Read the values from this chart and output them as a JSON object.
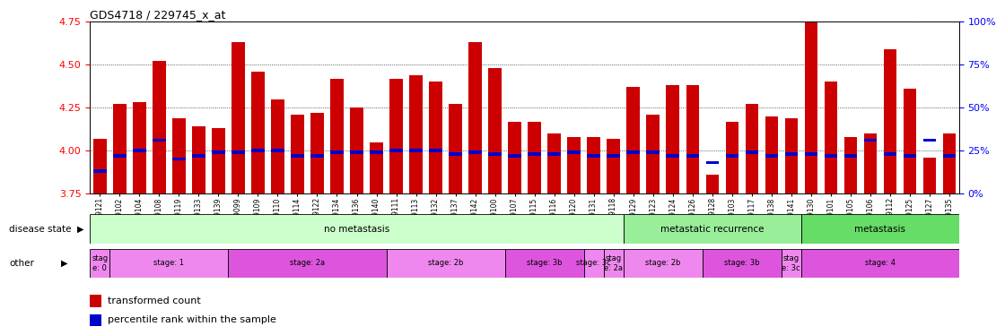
{
  "title": "GDS4718 / 229745_x_at",
  "samples": [
    "GSM549121",
    "GSM549102",
    "GSM549104",
    "GSM549108",
    "GSM549119",
    "GSM549133",
    "GSM549139",
    "GSM549099",
    "GSM549109",
    "GSM549110",
    "GSM549114",
    "GSM549122",
    "GSM549134",
    "GSM549136",
    "GSM549140",
    "GSM549111",
    "GSM549113",
    "GSM549132",
    "GSM549137",
    "GSM549142",
    "GSM549100",
    "GSM549107",
    "GSM549115",
    "GSM549116",
    "GSM549120",
    "GSM549131",
    "GSM549118",
    "GSM549129",
    "GSM549123",
    "GSM549124",
    "GSM549126",
    "GSM549128",
    "GSM549103",
    "GSM549117",
    "GSM549138",
    "GSM549141",
    "GSM549130",
    "GSM549101",
    "GSM549105",
    "GSM549106",
    "GSM549112",
    "GSM549125",
    "GSM549127",
    "GSM549135"
  ],
  "bar_heights": [
    4.07,
    4.27,
    4.28,
    4.52,
    4.19,
    4.14,
    4.13,
    4.63,
    4.46,
    4.3,
    4.21,
    4.22,
    4.42,
    4.25,
    4.05,
    4.42,
    4.44,
    4.4,
    4.27,
    4.63,
    4.48,
    4.17,
    4.17,
    4.1,
    4.08,
    4.08,
    4.07,
    4.37,
    4.21,
    4.38,
    4.38,
    3.86,
    4.17,
    4.27,
    4.2,
    4.19,
    4.76,
    4.4,
    4.08,
    4.1,
    4.59,
    4.36,
    3.96,
    4.1
  ],
  "percentile_values": [
    3.88,
    3.97,
    4.0,
    4.06,
    3.95,
    3.97,
    3.99,
    3.99,
    4.0,
    4.0,
    3.97,
    3.97,
    3.99,
    3.99,
    3.99,
    4.0,
    4.0,
    4.0,
    3.98,
    3.99,
    3.98,
    3.97,
    3.98,
    3.98,
    3.99,
    3.97,
    3.97,
    3.99,
    3.99,
    3.97,
    3.97,
    3.93,
    3.97,
    3.99,
    3.97,
    3.98,
    3.98,
    3.97,
    3.97,
    4.06,
    3.98,
    3.97,
    4.06,
    3.97
  ],
  "bar_color": "#CC0000",
  "percentile_color": "#0000CC",
  "ylim_left": [
    3.75,
    4.75
  ],
  "yticks_left": [
    3.75,
    4.0,
    4.25,
    4.5,
    4.75
  ],
  "ylim_right": [
    0,
    100
  ],
  "yticks_right": [
    0,
    25,
    50,
    75,
    100
  ],
  "disease_state_bands": [
    {
      "label": "no metastasis",
      "start": 0,
      "end": 27,
      "color": "#ccffcc"
    },
    {
      "label": "metastatic recurrence",
      "start": 27,
      "end": 36,
      "color": "#99ee99"
    },
    {
      "label": "metastasis",
      "start": 36,
      "end": 44,
      "color": "#66dd66"
    }
  ],
  "other_bands": [
    {
      "label": "stag\ne: 0",
      "start": 0,
      "end": 1,
      "color": "#ee88ee"
    },
    {
      "label": "stage: 1",
      "start": 1,
      "end": 7,
      "color": "#ee88ee"
    },
    {
      "label": "stage: 2a",
      "start": 7,
      "end": 15,
      "color": "#dd55dd"
    },
    {
      "label": "stage: 2b",
      "start": 15,
      "end": 21,
      "color": "#ee88ee"
    },
    {
      "label": "stage: 3b",
      "start": 21,
      "end": 25,
      "color": "#dd55dd"
    },
    {
      "label": "stage: 3c",
      "start": 25,
      "end": 26,
      "color": "#ee88ee"
    },
    {
      "label": "stag\ne: 2a",
      "start": 26,
      "end": 27,
      "color": "#ee88ee"
    },
    {
      "label": "stage: 2b",
      "start": 27,
      "end": 31,
      "color": "#ee88ee"
    },
    {
      "label": "stage: 3b",
      "start": 31,
      "end": 35,
      "color": "#dd55dd"
    },
    {
      "label": "stag\ne: 3c",
      "start": 35,
      "end": 36,
      "color": "#ee88ee"
    },
    {
      "label": "stage: 4",
      "start": 36,
      "end": 44,
      "color": "#dd55dd"
    }
  ],
  "legend_items": [
    {
      "label": "transformed count",
      "color": "#CC0000"
    },
    {
      "label": "percentile rank within the sample",
      "color": "#0000CC"
    }
  ],
  "left_label": "disease state",
  "left_label2": "other"
}
